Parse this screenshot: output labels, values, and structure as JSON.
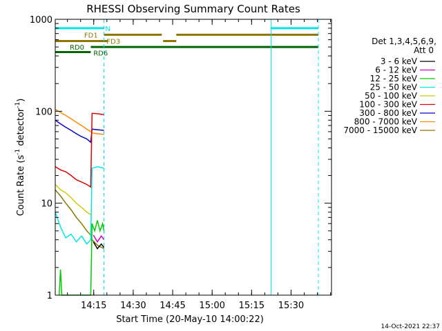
{
  "chart_data": {
    "type": "line",
    "title": "RHESSI Observing Summary Count Rates",
    "xlabel": "Start Time (20-May-10 14:00:22)",
    "ylabel_main": "Count Rate (s",
    "ylabel_sup1": "-1",
    "ylabel_mid": " detector",
    "ylabel_sup2": "-1",
    "ylabel_end": ")",
    "x_unit": "minutes after 14:00:22",
    "xlim": [
      0,
      105
    ],
    "ylim": [
      1,
      1000
    ],
    "yscale": "log",
    "x_ticks": [
      {
        "label": "14:15",
        "value": 14.63
      },
      {
        "label": "14:30",
        "value": 29.63
      },
      {
        "label": "14:45",
        "value": 44.63
      },
      {
        "label": "15:00",
        "value": 59.63
      },
      {
        "label": "15:15",
        "value": 74.63
      },
      {
        "label": "15:30",
        "value": 89.63
      }
    ],
    "y_ticks": [
      {
        "label": "1",
        "value": 1
      },
      {
        "label": "10",
        "value": 10
      },
      {
        "label": "100",
        "value": 100
      },
      {
        "label": "1000",
        "value": 1000
      }
    ],
    "legend": {
      "header1": "Det 1,3,4,5,6,9,",
      "header2": "Att 0",
      "position": "right",
      "entries": [
        {
          "label": "3 - 6 keV",
          "color": "#000000"
        },
        {
          "label": "6 - 12 keV",
          "color": "#cc00cc"
        },
        {
          "label": "12 - 25 keV",
          "color": "#00cc00"
        },
        {
          "label": "25 - 50 keV",
          "color": "#00e5e5"
        },
        {
          "label": "50 - 100 keV",
          "color": "#cccc00"
        },
        {
          "label": "100 - 300 keV",
          "color": "#dd0000"
        },
        {
          "label": "300 - 800 keV",
          "color": "#0000cc"
        },
        {
          "label": "800 - 7000 keV",
          "color": "#ff8800"
        },
        {
          "label": "7000 - 15000 keV",
          "color": "#8b7500"
        }
      ]
    },
    "flag_bars": [
      {
        "label": "N",
        "color": "#00e5e5",
        "y": 800,
        "segments": [
          [
            0,
            18.5
          ],
          [
            82,
            100
          ]
        ]
      },
      {
        "label": "FD1",
        "color": "#8b7500",
        "y": 680,
        "segments": [
          [
            18.5,
            40.5
          ],
          [
            46,
            100
          ]
        ]
      },
      {
        "label": "FD3",
        "color": "#8b7500",
        "y": 580,
        "segments": [
          [
            0,
            20
          ],
          [
            41,
            46
          ]
        ]
      },
      {
        "label": "RD0",
        "color": "#006400",
        "y": 500,
        "segments": [
          [
            13.5,
            100
          ]
        ]
      },
      {
        "label": "RD6",
        "color": "#006400",
        "y": 440,
        "segments": [
          [
            0,
            13.5
          ]
        ]
      }
    ],
    "event_lines": [
      {
        "x": 0,
        "style": "solid",
        "color": "#00e5e5"
      },
      {
        "x": 18.5,
        "style": "dashed",
        "color": "#00e5e5"
      },
      {
        "x": 82,
        "style": "solid",
        "color": "#00e5e5"
      },
      {
        "x": 100,
        "style": "dashed",
        "color": "#00e5e5"
      }
    ],
    "series": [
      {
        "name": "800 - 7000 keV",
        "color": "#ff8800",
        "x": [
          0,
          2,
          4,
          6,
          8,
          10,
          12,
          13.5,
          14,
          16,
          18.5
        ],
        "y": [
          105,
          97,
          90,
          83,
          76,
          70,
          64,
          60,
          58,
          57,
          56
        ]
      },
      {
        "name": "300 - 800 keV",
        "color": "#0000cc",
        "x": [
          0,
          2,
          4,
          6,
          8,
          10,
          12,
          13.5,
          14,
          16,
          18.5
        ],
        "y": [
          80,
          73,
          67,
          62,
          57,
          53,
          50,
          46,
          64,
          63,
          62
        ]
      },
      {
        "name": "100 - 300 keV",
        "color": "#dd0000",
        "x": [
          0,
          2,
          4,
          6,
          8,
          10,
          12,
          13.5,
          14,
          16,
          18.5
        ],
        "y": [
          25,
          23,
          22,
          20,
          18,
          17,
          16,
          15,
          95,
          94,
          92
        ]
      },
      {
        "name": "50 - 100 keV",
        "color": "#cccc00",
        "x": [
          0,
          2,
          4,
          6,
          8,
          10,
          12,
          13.5
        ],
        "y": [
          16,
          14,
          13,
          11.5,
          10,
          9,
          8,
          7.5
        ]
      },
      {
        "name": "7000 - 15000 keV",
        "color": "#8b7500",
        "x": [
          0,
          2,
          4,
          6,
          8,
          10,
          12,
          13.5,
          14,
          16,
          18.5
        ],
        "y": [
          14,
          12,
          10,
          8.5,
          7,
          6,
          5,
          4.5,
          4,
          3.5,
          3.2
        ]
      },
      {
        "name": "25 - 50 keV",
        "color": "#00e5e5",
        "x": [
          0,
          2,
          4,
          6,
          8,
          10,
          12,
          13.5,
          14,
          16,
          18.5
        ],
        "y": [
          8,
          5.5,
          4.2,
          4.6,
          3.8,
          4.4,
          3.6,
          4,
          24,
          25,
          24
        ]
      },
      {
        "name": "12 - 25 keV",
        "color": "#00cc00",
        "x": [
          1.5,
          2,
          2.5,
          13.5,
          14,
          15,
          16,
          17,
          18,
          18.5
        ],
        "y": [
          1,
          1.9,
          1,
          1,
          6,
          5,
          6.5,
          5,
          6,
          5
        ]
      },
      {
        "name": "6 - 12 keV",
        "color": "#cc00cc",
        "x": [
          14.5,
          16,
          17.5,
          18.5
        ],
        "y": [
          4.5,
          3.8,
          4.4,
          4
        ]
      },
      {
        "name": "3 - 6 keV",
        "color": "#000000",
        "x": [
          14.5,
          16,
          17.5,
          18.5
        ],
        "y": [
          3.8,
          3.2,
          3.6,
          3.3
        ]
      }
    ]
  },
  "footer": {
    "timestamp": "14-Oct-2021 22:37"
  }
}
